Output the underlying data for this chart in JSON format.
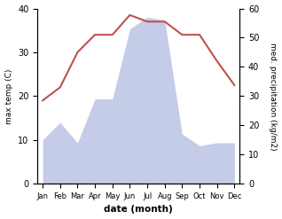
{
  "months": [
    "Jan",
    "Feb",
    "Mar",
    "Apr",
    "May",
    "Jun",
    "Jul",
    "Aug",
    "Sep",
    "Oct",
    "Nov",
    "Dec"
  ],
  "temperature": [
    19,
    22,
    30,
    34,
    34,
    38.5,
    37,
    37,
    34,
    34,
    28,
    22.5
  ],
  "precipitation": [
    15,
    21,
    14,
    29,
    29,
    53,
    57,
    56,
    17,
    13,
    14,
    14
  ],
  "temp_color": "#c0504d",
  "precip_fill_color": "#c5cce8",
  "temp_ylim": [
    0,
    40
  ],
  "precip_ylim": [
    0,
    60
  ],
  "xlabel": "date (month)",
  "ylabel_left": "max temp (C)",
  "ylabel_right": "med. precipitation (kg/m2)"
}
